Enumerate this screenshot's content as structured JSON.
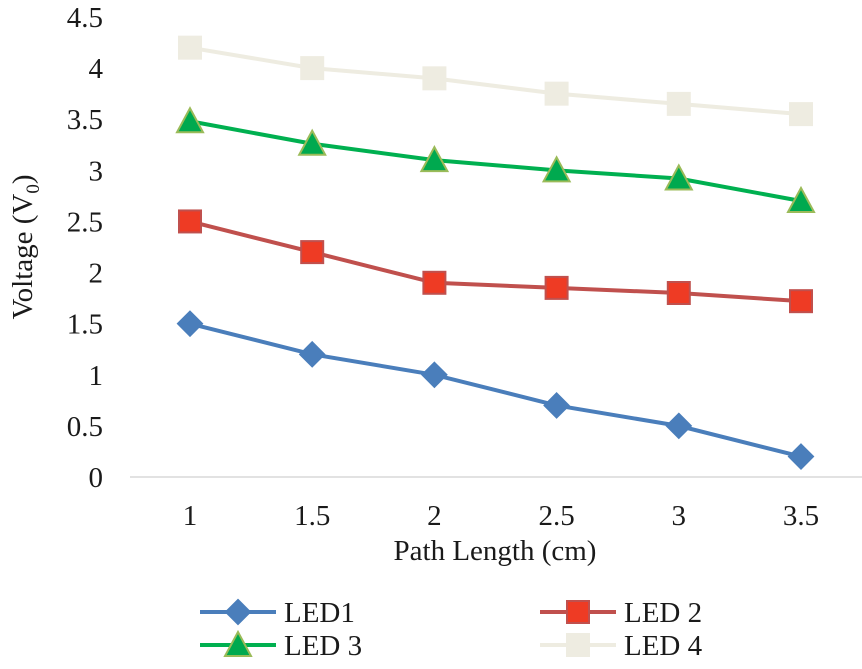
{
  "chart_data": {
    "type": "line",
    "title": "",
    "xlabel": "Path Length (cm)",
    "ylabel": "Voltage (V",
    "ylabel_subscript": "0",
    "ylabel_suffix": ")",
    "x": [
      1,
      1.5,
      2,
      2.5,
      3,
      3.5
    ],
    "x_tick_labels": [
      "1",
      "1.5",
      "2",
      "2.5",
      "3",
      "3.5"
    ],
    "ylim": [
      0,
      4.5
    ],
    "y_ticks": [
      0,
      0.5,
      1,
      1.5,
      2,
      2.5,
      3,
      3.5,
      4,
      4.5
    ],
    "y_tick_labels": [
      "0",
      "0.5",
      "1",
      "1.5",
      "2",
      "2.5",
      "3",
      "3.5",
      "4",
      "4.5"
    ],
    "grid": false,
    "legend_position": "bottom",
    "series": [
      {
        "name": "LED1",
        "values": [
          1.5,
          1.2,
          1.0,
          0.7,
          0.5,
          0.2
        ],
        "color": "#4a7ebb",
        "marker": "diamond",
        "marker_fill": "#4a7ebb",
        "marker_stroke": "#4a7ebb"
      },
      {
        "name": "LED 2",
        "values": [
          2.5,
          2.2,
          1.9,
          1.85,
          1.8,
          1.72
        ],
        "color": "#c0504d",
        "marker": "square",
        "marker_fill": "#ee3b24",
        "marker_stroke": "#c0504d"
      },
      {
        "name": "LED 3",
        "values": [
          3.48,
          3.26,
          3.1,
          3.0,
          2.92,
          2.7
        ],
        "color": "#00b050",
        "marker": "triangle",
        "marker_fill": "#00a94f",
        "marker_stroke": "#9bbb59"
      },
      {
        "name": "LED 4",
        "values": [
          4.2,
          4.0,
          3.9,
          3.75,
          3.65,
          3.55
        ],
        "color": "#eeece1",
        "marker": "square",
        "marker_fill": "#eeece1",
        "marker_stroke": "#eeece1"
      }
    ]
  }
}
